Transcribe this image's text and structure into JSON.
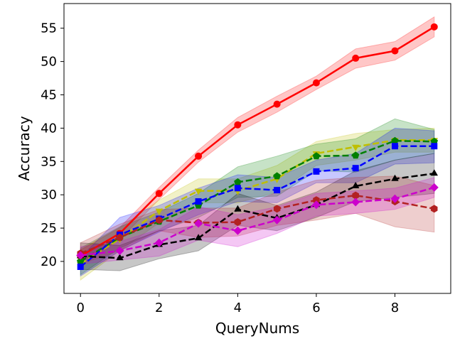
{
  "chart_data": {
    "type": "line",
    "title": "",
    "xlabel": "QueryNums",
    "ylabel": "Accuracy",
    "xlim": [
      -0.42,
      9.42
    ],
    "ylim": [
      15.2,
      58.7
    ],
    "xticks": [
      0,
      2,
      4,
      6,
      8
    ],
    "yticks": [
      20,
      25,
      30,
      35,
      40,
      45,
      50,
      55
    ],
    "grid": false,
    "legend": "none",
    "x": [
      0,
      1,
      2,
      3,
      4,
      5,
      6,
      7,
      8,
      9
    ],
    "series": [
      {
        "color": "#ff0000",
        "linestyle": "solid",
        "marker": "circle",
        "values": [
          20.8,
          24.2,
          30.2,
          35.8,
          40.5,
          43.6,
          46.8,
          50.5,
          51.6,
          55.2
        ],
        "lower": [
          19.9,
          23.3,
          29.3,
          34.9,
          39.4,
          42.4,
          45.8,
          49.0,
          50.2,
          53.7
        ],
        "upper": [
          21.7,
          25.1,
          31.1,
          36.7,
          41.6,
          44.8,
          47.8,
          51.9,
          53.0,
          56.7
        ]
      },
      {
        "color": "#bfbf00",
        "linestyle": "dashed",
        "marker": "triangle-down",
        "values": [
          19.6,
          23.4,
          27.6,
          30.6,
          30.6,
          32.4,
          36.2,
          37.2,
          38.2,
          38.2
        ],
        "lower": [
          17.2,
          21.6,
          25.8,
          28.8,
          28.8,
          30.4,
          34.4,
          35.2,
          36.4,
          36.4
        ],
        "upper": [
          21.8,
          25.0,
          29.2,
          32.4,
          32.4,
          34.4,
          38.0,
          39.2,
          39.8,
          40.0
        ]
      },
      {
        "color": "#008000",
        "linestyle": "dashed",
        "marker": "pentagon",
        "values": [
          20.0,
          23.6,
          26.0,
          28.4,
          31.9,
          32.8,
          35.8,
          35.9,
          38.1,
          38.0
        ],
        "lower": [
          18.0,
          22.0,
          24.6,
          26.6,
          29.6,
          29.8,
          33.6,
          33.4,
          35.2,
          36.2
        ],
        "upper": [
          22.0,
          25.2,
          27.4,
          30.2,
          34.2,
          35.8,
          37.6,
          38.4,
          41.4,
          39.8
        ]
      },
      {
        "color": "#0000ff",
        "linestyle": "dashed",
        "marker": "square",
        "values": [
          19.2,
          24.0,
          26.4,
          29.0,
          31.0,
          30.7,
          33.5,
          34.0,
          37.3,
          37.3
        ],
        "lower": [
          17.8,
          21.6,
          24.4,
          27.0,
          29.0,
          28.8,
          31.8,
          31.8,
          34.6,
          34.8
        ],
        "upper": [
          20.6,
          26.6,
          28.4,
          31.0,
          33.0,
          32.6,
          35.2,
          36.2,
          40.0,
          39.6
        ]
      },
      {
        "color": "#000000",
        "linestyle": "dashed",
        "marker": "triangle-up",
        "values": [
          20.8,
          20.5,
          22.5,
          23.5,
          27.8,
          26.5,
          28.5,
          31.3,
          32.4,
          33.2
        ],
        "lower": [
          18.8,
          18.6,
          20.4,
          21.6,
          25.4,
          24.6,
          26.6,
          29.0,
          29.6,
          30.2
        ],
        "upper": [
          22.8,
          22.4,
          24.6,
          25.4,
          30.2,
          28.4,
          30.4,
          33.6,
          35.2,
          36.2
        ]
      },
      {
        "color": "#b22222",
        "linestyle": "dashed",
        "marker": "hexagon",
        "values": [
          21.2,
          23.6,
          26.2,
          25.8,
          25.9,
          27.9,
          29.2,
          29.9,
          29.0,
          27.9
        ],
        "lower": [
          19.6,
          21.6,
          24.6,
          23.6,
          23.8,
          25.4,
          26.2,
          27.2,
          25.2,
          24.4
        ],
        "upper": [
          22.8,
          25.6,
          27.8,
          28.0,
          28.0,
          30.4,
          32.2,
          32.6,
          32.8,
          31.4
        ]
      },
      {
        "color": "#cc00cc",
        "linestyle": "dashed",
        "marker": "diamond",
        "values": [
          20.9,
          21.6,
          22.8,
          25.7,
          24.6,
          26.2,
          28.5,
          28.9,
          29.4,
          31.1
        ],
        "lower": [
          19.6,
          20.2,
          20.8,
          23.2,
          22.2,
          24.2,
          26.8,
          27.2,
          27.8,
          29.6
        ],
        "upper": [
          22.2,
          23.0,
          24.8,
          28.2,
          27.0,
          28.2,
          30.2,
          30.6,
          31.0,
          32.6
        ]
      }
    ]
  }
}
